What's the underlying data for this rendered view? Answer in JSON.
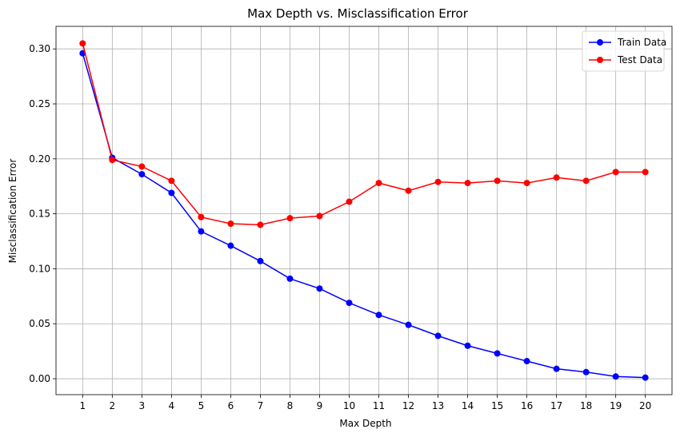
{
  "chart_data": {
    "type": "line",
    "title": "Max Depth vs. Misclassification Error",
    "xlabel": "Max Depth",
    "ylabel": "Misclassification Error",
    "x": [
      1,
      2,
      3,
      4,
      5,
      6,
      7,
      8,
      9,
      10,
      11,
      12,
      13,
      14,
      15,
      16,
      17,
      18,
      19,
      20
    ],
    "xlim": [
      0.1,
      20.9
    ],
    "ylim": [
      -0.0145,
      0.3205
    ],
    "yticks": [
      0.0,
      0.05,
      0.1,
      0.15,
      0.2,
      0.25,
      0.3
    ],
    "ytick_labels": [
      "0.00",
      "0.05",
      "0.10",
      "0.15",
      "0.20",
      "0.25",
      "0.30"
    ],
    "grid": true,
    "legend_position": "top-right",
    "series": [
      {
        "name": "Train Data",
        "color": "#0000ff",
        "values": [
          0.296,
          0.201,
          0.186,
          0.169,
          0.134,
          0.121,
          0.107,
          0.091,
          0.082,
          0.069,
          0.058,
          0.049,
          0.039,
          0.03,
          0.023,
          0.016,
          0.009,
          0.006,
          0.002,
          0.001
        ]
      },
      {
        "name": "Test Data",
        "color": "#ff0000",
        "values": [
          0.305,
          0.199,
          0.193,
          0.18,
          0.147,
          0.141,
          0.14,
          0.146,
          0.148,
          0.161,
          0.178,
          0.171,
          0.179,
          0.178,
          0.18,
          0.178,
          0.183,
          0.18,
          0.188,
          0.188
        ]
      }
    ]
  }
}
